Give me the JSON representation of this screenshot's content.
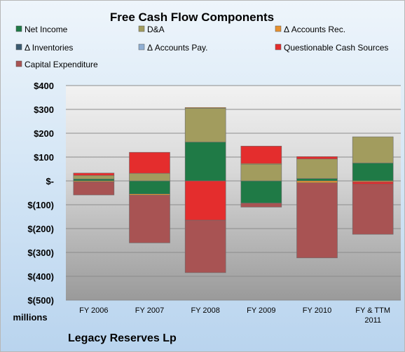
{
  "chart_data": {
    "type": "bar",
    "stacked": true,
    "title": "Free Cash Flow Components",
    "categories": [
      "FY 2006",
      "FY 2007",
      "FY 2008",
      "FY 2009",
      "FY 2010",
      "FY & TTM 2011"
    ],
    "y_tick_labels": [
      "$400",
      "$300",
      "$200",
      "$100",
      "$-",
      "$(100)",
      "$(200)",
      "$(300)",
      "$(400)",
      "$(500)"
    ],
    "ylim": [
      -500,
      400
    ],
    "ylabel": "",
    "xlabel": "",
    "units_label": "millions",
    "company": "Legacy Reserves Lp",
    "grid": true,
    "legend_position": "top",
    "series": [
      {
        "name": "Net Income",
        "color": "#1f7a46",
        "values": [
          8,
          -55,
          163,
          -93,
          10,
          75
        ]
      },
      {
        "name": "D&A",
        "color": "#a29c5e",
        "values": [
          15,
          32,
          142,
          70,
          82,
          110
        ]
      },
      {
        "name": "Δ Accounts Rec.",
        "color": "#e6912f",
        "values": [
          -4,
          -5,
          3,
          3,
          -8,
          -4
        ]
      },
      {
        "name": "Δ Inventories",
        "color": "#3a5a70",
        "values": [
          0,
          0,
          0,
          0,
          0,
          0
        ]
      },
      {
        "name": "Δ Accounts Pay.",
        "color": "#8faed3",
        "values": [
          0,
          0,
          0,
          0,
          0,
          0
        ]
      },
      {
        "name": "Questionable Cash Sources",
        "color": "#e42d2d",
        "values": [
          10,
          88,
          -165,
          73,
          10,
          -10
        ]
      },
      {
        "name": "Capital Expenditure",
        "color": "#a85353",
        "values": [
          -55,
          -200,
          -220,
          -17,
          -315,
          -210
        ]
      }
    ]
  }
}
